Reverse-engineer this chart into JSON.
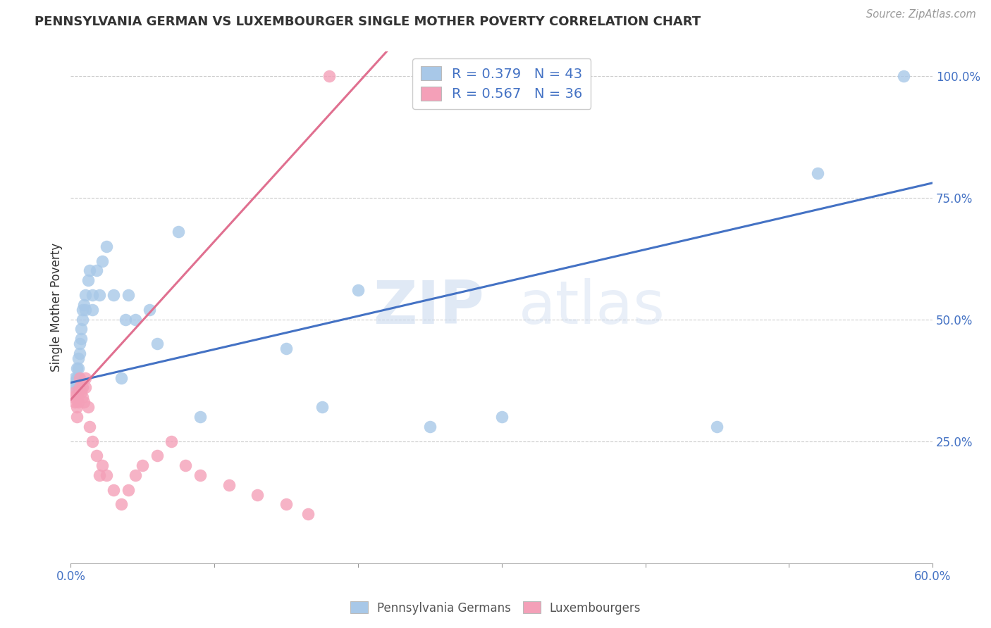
{
  "title": "PENNSYLVANIA GERMAN VS LUXEMBOURGER SINGLE MOTHER POVERTY CORRELATION CHART",
  "source": "Source: ZipAtlas.com",
  "xlabel": "",
  "ylabel": "Single Mother Poverty",
  "xlim": [
    0.0,
    0.6
  ],
  "ylim": [
    0.0,
    1.05
  ],
  "xticks": [
    0.0,
    0.1,
    0.2,
    0.3,
    0.4,
    0.5,
    0.6
  ],
  "xticklabels": [
    "0.0%",
    "",
    "",
    "",
    "",
    "",
    "60.0%"
  ],
  "ytick_positions": [
    0.25,
    0.5,
    0.75,
    1.0
  ],
  "ytick_labels": [
    "25.0%",
    "50.0%",
    "75.0%",
    "100.0%"
  ],
  "blue_color": "#a8c8e8",
  "pink_color": "#f4a0b8",
  "blue_line_color": "#4472C4",
  "pink_line_color": "#E07090",
  "blue_R": 0.379,
  "blue_N": 43,
  "pink_R": 0.567,
  "pink_N": 36,
  "background_color": "#ffffff",
  "watermark_zip": "ZIP",
  "watermark_atlas": "atlas",
  "legend_label_blue": "Pennsylvania Germans",
  "legend_label_pink": "Luxembourgers",
  "blue_scatter_x": [
    0.002,
    0.003,
    0.003,
    0.004,
    0.004,
    0.005,
    0.005,
    0.005,
    0.005,
    0.006,
    0.006,
    0.007,
    0.007,
    0.008,
    0.008,
    0.009,
    0.01,
    0.01,
    0.012,
    0.013,
    0.015,
    0.015,
    0.018,
    0.02,
    0.022,
    0.025,
    0.03,
    0.035,
    0.038,
    0.04,
    0.045,
    0.055,
    0.06,
    0.075,
    0.09,
    0.15,
    0.175,
    0.2,
    0.25,
    0.3,
    0.45,
    0.52,
    0.58
  ],
  "blue_scatter_y": [
    0.37,
    0.38,
    0.36,
    0.4,
    0.38,
    0.42,
    0.4,
    0.38,
    0.36,
    0.45,
    0.43,
    0.48,
    0.46,
    0.52,
    0.5,
    0.53,
    0.55,
    0.52,
    0.58,
    0.6,
    0.55,
    0.52,
    0.6,
    0.55,
    0.62,
    0.65,
    0.55,
    0.38,
    0.5,
    0.55,
    0.5,
    0.52,
    0.45,
    0.68,
    0.3,
    0.44,
    0.32,
    0.56,
    0.28,
    0.3,
    0.28,
    0.8,
    1.0
  ],
  "pink_scatter_x": [
    0.002,
    0.003,
    0.003,
    0.004,
    0.004,
    0.005,
    0.005,
    0.006,
    0.006,
    0.007,
    0.008,
    0.008,
    0.009,
    0.01,
    0.01,
    0.012,
    0.013,
    0.015,
    0.018,
    0.02,
    0.022,
    0.025,
    0.03,
    0.035,
    0.04,
    0.045,
    0.05,
    0.06,
    0.07,
    0.08,
    0.09,
    0.11,
    0.13,
    0.15,
    0.165,
    0.18
  ],
  "pink_scatter_y": [
    0.34,
    0.35,
    0.33,
    0.32,
    0.3,
    0.35,
    0.33,
    0.38,
    0.36,
    0.35,
    0.36,
    0.34,
    0.33,
    0.38,
    0.36,
    0.32,
    0.28,
    0.25,
    0.22,
    0.18,
    0.2,
    0.18,
    0.15,
    0.12,
    0.15,
    0.18,
    0.2,
    0.22,
    0.25,
    0.2,
    0.18,
    0.16,
    0.14,
    0.12,
    0.1,
    1.0
  ],
  "blue_trend_x": [
    0.0,
    0.6
  ],
  "blue_trend_y": [
    0.37,
    0.78
  ],
  "pink_trend_x": [
    0.0,
    0.22
  ],
  "pink_trend_y": [
    0.335,
    1.05
  ]
}
